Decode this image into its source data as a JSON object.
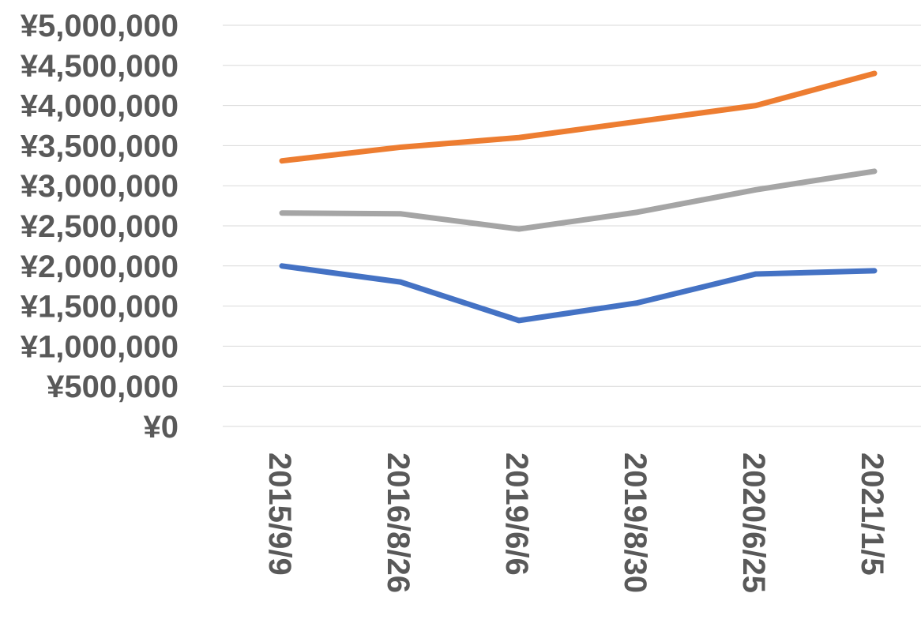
{
  "chart_data": {
    "type": "line",
    "title": "",
    "xlabel": "",
    "ylabel": "",
    "categories": [
      "2015/9/9",
      "2016/8/26",
      "2019/6/6",
      "2019/8/30",
      "2020/6/25",
      "2021/1/5"
    ],
    "ylim": [
      0,
      5000000
    ],
    "y_ticks": [
      0,
      500000,
      1000000,
      1500000,
      2000000,
      2500000,
      3000000,
      3500000,
      4000000,
      4500000,
      5000000
    ],
    "y_tick_labels": [
      "¥0",
      "¥500,000",
      "¥1,000,000",
      "¥1,500,000",
      "¥2,000,000",
      "¥2,500,000",
      "¥3,000,000",
      "¥3,500,000",
      "¥4,000,000",
      "¥4,500,000",
      "¥5,000,000"
    ],
    "grid": true,
    "legend": "none",
    "series": [
      {
        "color": "#4472c4",
        "values": [
          2000000,
          1800000,
          1320000,
          1540000,
          1900000,
          1940000
        ]
      },
      {
        "color": "#ed7d31",
        "values": [
          3310000,
          3480000,
          3600000,
          3800000,
          4000000,
          4400000
        ]
      },
      {
        "color": "#a5a5a5",
        "values": [
          2660000,
          2650000,
          2460000,
          2670000,
          2950000,
          3180000
        ]
      }
    ]
  }
}
